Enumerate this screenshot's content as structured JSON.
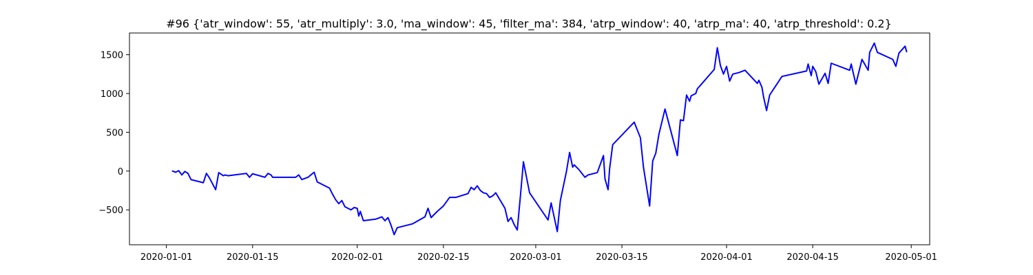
{
  "chart_data": {
    "type": "line",
    "title": "#96 {'atr_window': 55, 'atr_multiply': 3.0, 'ma_window': 45, 'filter_ma': 384, 'atrp_window': 40, 'atrp_ma': 40, 'atrp_threshold': 0.2}",
    "xlabel": "",
    "ylabel": "",
    "xlim": [
      "2019-12-26",
      "2020-05-04"
    ],
    "ylim": [
      -950,
      1780
    ],
    "x_ticks": [
      "2020-01-01",
      "2020-01-15",
      "2020-02-01",
      "2020-02-15",
      "2020-03-01",
      "2020-03-15",
      "2020-04-01",
      "2020-04-15",
      "2020-05-01"
    ],
    "y_ticks": [
      -500,
      0,
      500,
      1000,
      1500
    ],
    "grid": false,
    "series": [
      {
        "color": "#0000ff",
        "points": [
          [
            "2020-01-02",
            0
          ],
          [
            "2020-01-02 12:00",
            -15
          ],
          [
            "2020-01-03",
            5
          ],
          [
            "2020-01-03 12:00",
            -50
          ],
          [
            "2020-01-04",
            -5
          ],
          [
            "2020-01-04 12:00",
            -30
          ],
          [
            "2020-01-05",
            -110
          ],
          [
            "2020-01-07",
            -150
          ],
          [
            "2020-01-07 12:00",
            -30
          ],
          [
            "2020-01-08",
            -90
          ],
          [
            "2020-01-09",
            -240
          ],
          [
            "2020-01-09 12:00",
            -20
          ],
          [
            "2020-01-10 06:00",
            -60
          ],
          [
            "2020-01-10 12:00",
            -50
          ],
          [
            "2020-01-11",
            -60
          ],
          [
            "2020-01-14",
            -30
          ],
          [
            "2020-01-14 12:00",
            -80
          ],
          [
            "2020-01-15",
            -35
          ],
          [
            "2020-01-17",
            -80
          ],
          [
            "2020-01-17 12:00",
            -30
          ],
          [
            "2020-01-18",
            -50
          ],
          [
            "2020-01-18 06:00",
            -80
          ],
          [
            "2020-01-22",
            -80
          ],
          [
            "2020-01-22 12:00",
            -50
          ],
          [
            "2020-01-23",
            -110
          ],
          [
            "2020-01-24",
            -80
          ],
          [
            "2020-01-25",
            -15
          ],
          [
            "2020-01-25 12:00",
            -140
          ],
          [
            "2020-01-27",
            -200
          ],
          [
            "2020-01-27 12:00",
            -220
          ],
          [
            "2020-01-28",
            -300
          ],
          [
            "2020-01-28 12:00",
            -370
          ],
          [
            "2020-01-29",
            -420
          ],
          [
            "2020-01-29 12:00",
            -380
          ],
          [
            "2020-01-30",
            -460
          ],
          [
            "2020-01-31",
            -500
          ],
          [
            "2020-01-31 12:00",
            -470
          ],
          [
            "2020-02-01",
            -480
          ],
          [
            "2020-02-01 06:00",
            -580
          ],
          [
            "2020-02-01 12:00",
            -520
          ],
          [
            "2020-02-02",
            -640
          ],
          [
            "2020-02-04",
            -620
          ],
          [
            "2020-02-05",
            -590
          ],
          [
            "2020-02-05 12:00",
            -640
          ],
          [
            "2020-02-06",
            -600
          ],
          [
            "2020-02-06 12:00",
            -700
          ],
          [
            "2020-02-07",
            -820
          ],
          [
            "2020-02-07 12:00",
            -730
          ],
          [
            "2020-02-10",
            -680
          ],
          [
            "2020-02-12",
            -590
          ],
          [
            "2020-02-12 12:00",
            -480
          ],
          [
            "2020-02-13",
            -600
          ],
          [
            "2020-02-14",
            -520
          ],
          [
            "2020-02-15",
            -450
          ],
          [
            "2020-02-16",
            -340
          ],
          [
            "2020-02-17",
            -340
          ],
          [
            "2020-02-19",
            -290
          ],
          [
            "2020-02-19 12:00",
            -210
          ],
          [
            "2020-02-20",
            -240
          ],
          [
            "2020-02-20 12:00",
            -190
          ],
          [
            "2020-02-21",
            -250
          ],
          [
            "2020-02-21 12:00",
            -280
          ],
          [
            "2020-02-22",
            -290
          ],
          [
            "2020-02-22 12:00",
            -340
          ],
          [
            "2020-02-23",
            -320
          ],
          [
            "2020-02-23 12:00",
            -280
          ],
          [
            "2020-02-25",
            -480
          ],
          [
            "2020-02-25 12:00",
            -650
          ],
          [
            "2020-02-26",
            -600
          ],
          [
            "2020-02-26 12:00",
            -690
          ],
          [
            "2020-02-27",
            -760
          ],
          [
            "2020-02-27 12:00",
            -330
          ],
          [
            "2020-02-28",
            120
          ],
          [
            "2020-02-29",
            -280
          ],
          [
            "2020-03-03",
            -630
          ],
          [
            "2020-03-03 12:00",
            -410
          ],
          [
            "2020-03-04 12:00",
            -780
          ],
          [
            "2020-03-05",
            -380
          ],
          [
            "2020-03-06",
            0
          ],
          [
            "2020-03-06 12:00",
            240
          ],
          [
            "2020-03-07",
            50
          ],
          [
            "2020-03-07 06:00",
            80
          ],
          [
            "2020-03-08",
            20
          ],
          [
            "2020-03-09",
            -80
          ],
          [
            "2020-03-09 12:00",
            -50
          ],
          [
            "2020-03-11",
            -20
          ],
          [
            "2020-03-12",
            200
          ],
          [
            "2020-03-12 06:00",
            -100
          ],
          [
            "2020-03-12 18:00",
            -240
          ],
          [
            "2020-03-13",
            30
          ],
          [
            "2020-03-13 12:00",
            340
          ],
          [
            "2020-03-17",
            630
          ],
          [
            "2020-03-18",
            430
          ],
          [
            "2020-03-18 12:00",
            50
          ],
          [
            "2020-03-19 12:00",
            -450
          ],
          [
            "2020-03-20",
            130
          ],
          [
            "2020-03-20 12:00",
            230
          ],
          [
            "2020-03-21",
            470
          ],
          [
            "2020-03-22",
            800
          ],
          [
            "2020-03-24",
            200
          ],
          [
            "2020-03-24 12:00",
            660
          ],
          [
            "2020-03-25",
            650
          ],
          [
            "2020-03-25 12:00",
            980
          ],
          [
            "2020-03-26",
            900
          ],
          [
            "2020-03-26 06:00",
            970
          ],
          [
            "2020-03-27",
            1000
          ],
          [
            "2020-03-27 06:00",
            1060
          ],
          [
            "2020-03-30",
            1310
          ],
          [
            "2020-03-30 12:00",
            1590
          ],
          [
            "2020-03-31",
            1360
          ],
          [
            "2020-03-31 12:00",
            1250
          ],
          [
            "2020-04-01",
            1350
          ],
          [
            "2020-04-01 12:00",
            1160
          ],
          [
            "2020-04-02",
            1250
          ],
          [
            "2020-04-03",
            1270
          ],
          [
            "2020-04-04",
            1300
          ],
          [
            "2020-04-06",
            1130
          ],
          [
            "2020-04-06 06:00",
            1170
          ],
          [
            "2020-04-06 18:00",
            1080
          ],
          [
            "2020-04-07",
            960
          ],
          [
            "2020-04-07 12:00",
            780
          ],
          [
            "2020-04-08",
            980
          ],
          [
            "2020-04-10",
            1220
          ],
          [
            "2020-04-14",
            1290
          ],
          [
            "2020-04-14 06:00",
            1380
          ],
          [
            "2020-04-14 18:00",
            1230
          ],
          [
            "2020-04-15",
            1350
          ],
          [
            "2020-04-15 12:00",
            1280
          ],
          [
            "2020-04-16",
            1120
          ],
          [
            "2020-04-17",
            1260
          ],
          [
            "2020-04-17 12:00",
            1130
          ],
          [
            "2020-04-18",
            1390
          ],
          [
            "2020-04-21",
            1300
          ],
          [
            "2020-04-21 06:00",
            1380
          ],
          [
            "2020-04-22",
            1120
          ],
          [
            "2020-04-23",
            1440
          ],
          [
            "2020-04-24",
            1300
          ],
          [
            "2020-04-24 06:00",
            1530
          ],
          [
            "2020-04-25",
            1650
          ],
          [
            "2020-04-25 12:00",
            1530
          ],
          [
            "2020-04-28",
            1440
          ],
          [
            "2020-04-28 12:00",
            1350
          ],
          [
            "2020-04-29",
            1520
          ],
          [
            "2020-04-30",
            1610
          ],
          [
            "2020-04-30 06:00",
            1540
          ]
        ]
      }
    ]
  }
}
